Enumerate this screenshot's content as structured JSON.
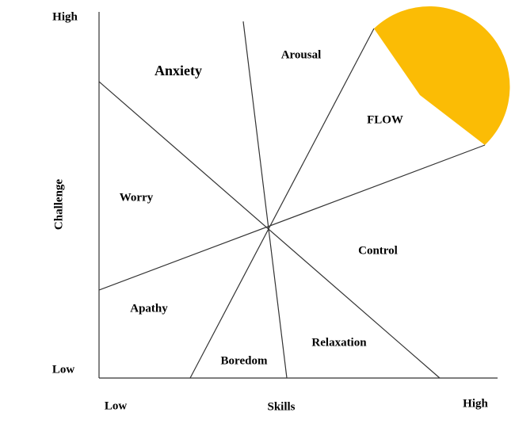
{
  "axes": {
    "y_high": "High",
    "y_low": "Low",
    "y_label": "Challenge",
    "x_low": "Low",
    "x_label": "Skills",
    "x_high": "High"
  },
  "regions": [
    {
      "label": "Anxiety"
    },
    {
      "label": "Arousal"
    },
    {
      "label": "FLOW"
    },
    {
      "label": "Worry"
    },
    {
      "label": "Control"
    },
    {
      "label": "Apathy"
    },
    {
      "label": "Relaxation"
    },
    {
      "label": "Boredom"
    }
  ]
}
